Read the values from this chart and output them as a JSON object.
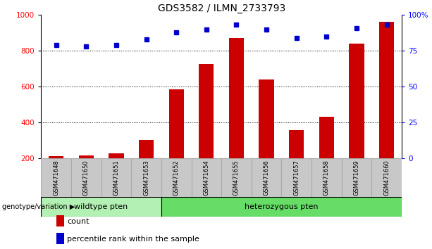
{
  "title": "GDS3582 / ILMN_2733793",
  "categories": [
    "GSM471648",
    "GSM471650",
    "GSM471651",
    "GSM471653",
    "GSM471652",
    "GSM471654",
    "GSM471655",
    "GSM471656",
    "GSM471657",
    "GSM471658",
    "GSM471659",
    "GSM471660"
  ],
  "counts": [
    210,
    215,
    225,
    300,
    585,
    725,
    870,
    640,
    355,
    430,
    840,
    960
  ],
  "percentiles": [
    79,
    78,
    79,
    83,
    88,
    90,
    93,
    90,
    84,
    85,
    91,
    93
  ],
  "bar_color": "#cc0000",
  "dot_color": "#0000cc",
  "ylim_left": [
    200,
    1000
  ],
  "ylim_right": [
    0,
    100
  ],
  "yticks_left": [
    200,
    400,
    600,
    800,
    1000
  ],
  "yticks_right": [
    0,
    25,
    50,
    75,
    100
  ],
  "grid_values": [
    400,
    600,
    800
  ],
  "group1_label": "wildtype pten",
  "group2_label": "heterozygous pten",
  "group1_count": 4,
  "group2_count": 8,
  "genotype_label": "genotype/variation",
  "legend_count": "count",
  "legend_percentile": "percentile rank within the sample",
  "bar_width": 0.5,
  "background_color": "#ffffff",
  "group1_color": "#b3f0b3",
  "group2_color": "#66dd66",
  "label_box_color": "#c8c8c8",
  "label_box_edge_color": "#aaaaaa"
}
